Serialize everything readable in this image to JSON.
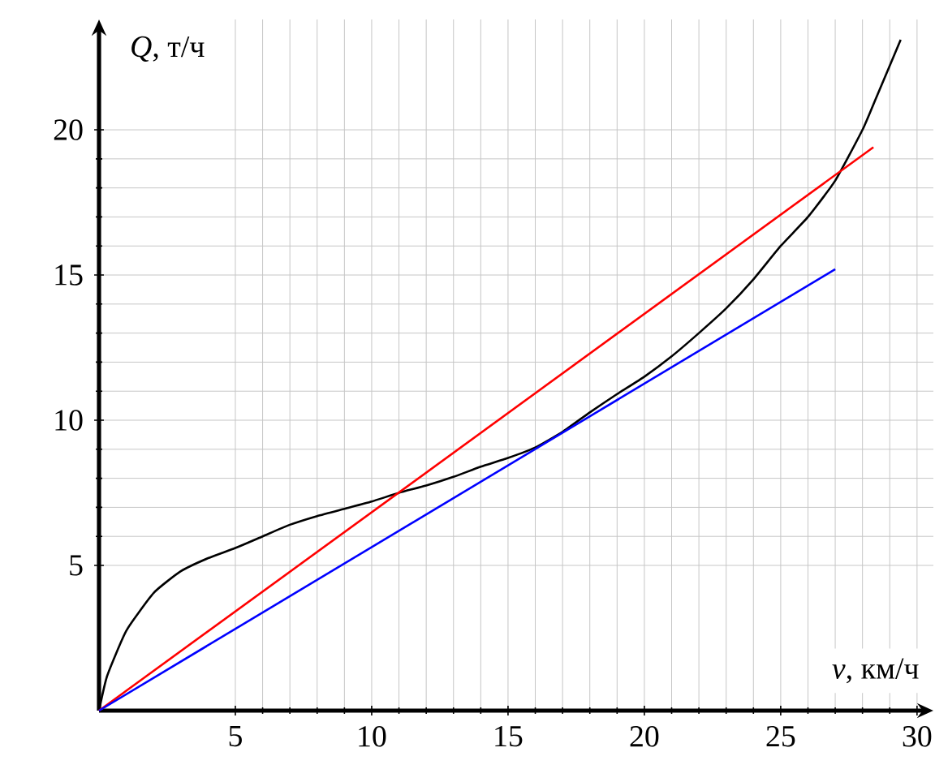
{
  "chart_data": {
    "type": "line",
    "xlabel": "*v*, км/ч",
    "ylabel": "*Q*, т/ч",
    "xlim": [
      0,
      30.6
    ],
    "ylim": [
      0,
      23.8
    ],
    "xticks": [
      5,
      10,
      15,
      20,
      25,
      30
    ],
    "yticks": [
      5,
      10,
      15,
      20
    ],
    "grid": true,
    "series": [
      {
        "color": "#000000",
        "x": [
          0,
          0.3,
          1,
          2,
          3,
          4,
          5,
          6,
          7,
          8,
          9,
          10,
          11,
          12,
          13,
          14,
          15,
          16,
          17,
          18,
          19,
          20,
          21,
          22,
          23,
          24,
          25,
          26,
          27,
          28,
          28.5,
          29.4
        ],
        "values": [
          0,
          1.2,
          2.75,
          4.05,
          4.8,
          5.25,
          5.6,
          6.0,
          6.4,
          6.7,
          6.95,
          7.2,
          7.5,
          7.75,
          8.05,
          8.4,
          8.7,
          9.06,
          9.6,
          10.27,
          10.9,
          11.5,
          12.2,
          13.0,
          13.85,
          14.85,
          16.0,
          17.0,
          18.25,
          20.0,
          21.1,
          23.1
        ]
      },
      {
        "color": "#ff0000",
        "x": [
          0,
          28.4
        ],
        "values": [
          0,
          19.4
        ]
      },
      {
        "color": "#0000ff",
        "x": [
          0,
          27.0
        ],
        "values": [
          0,
          15.2
        ]
      }
    ]
  }
}
